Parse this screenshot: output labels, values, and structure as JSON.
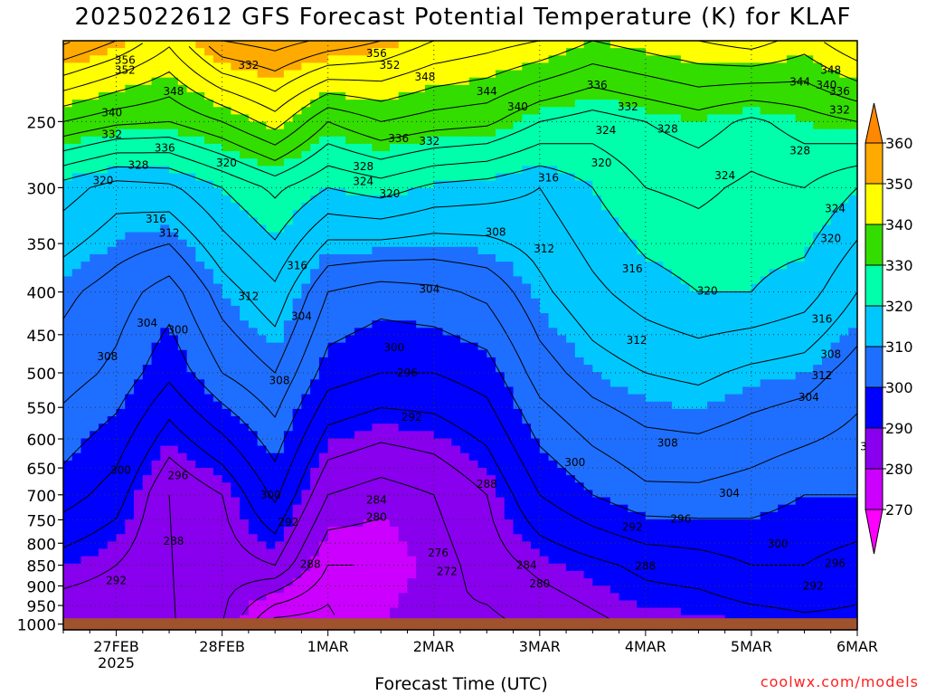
{
  "title": "2025022612 GFS Forecast Potential Temperature (K) for KLAF",
  "credit": "coolwx.com/models",
  "chart_data": {
    "type": "heatmap",
    "title": "2025022612 GFS Forecast Potential Temperature (K) for KLAF",
    "xlabel": "Forecast Time (UTC)",
    "ylabel": "",
    "x_ticks": [
      "27FEB",
      "28FEB",
      "1MAR",
      "2MAR",
      "3MAR",
      "4MAR",
      "5MAR",
      "6MAR"
    ],
    "x_tick_sublabel": "2025",
    "x_range": [
      "2025-02-26T12:00",
      "2025-03-06T00:00"
    ],
    "y_ticks": [
      250,
      300,
      350,
      400,
      450,
      500,
      550,
      600,
      650,
      700,
      750,
      800,
      850,
      900,
      950,
      1000
    ],
    "y_range": [
      1016,
      200
    ],
    "y_scale": "log",
    "grid": true,
    "colorbar": {
      "levels": [
        270,
        280,
        290,
        300,
        310,
        320,
        330,
        340,
        350,
        360
      ],
      "colors": [
        "#ff00ff",
        "#cc00ff",
        "#8800ee",
        "#0000ff",
        "#1e6fff",
        "#00c8ff",
        "#00ffaa",
        "#33dd00",
        "#ffff00",
        "#ffaa00",
        "#ff8800"
      ]
    },
    "series": [
      {
        "name": "1000 hPa",
        "values": [
          [
            0,
            285
          ],
          [
            12,
            285
          ],
          [
            24,
            284
          ],
          [
            36,
            284
          ],
          [
            48,
            270
          ],
          [
            60,
            270
          ],
          [
            72,
            280
          ],
          [
            84,
            284
          ],
          [
            96,
            283
          ],
          [
            108,
            285
          ],
          [
            120,
            287
          ],
          [
            132,
            289
          ],
          [
            144,
            289
          ],
          [
            156,
            290
          ],
          [
            168,
            291
          ],
          [
            180,
            291
          ]
        ]
      },
      {
        "name": "850 hPa",
        "values": [
          [
            0,
            290
          ],
          [
            12,
            288
          ],
          [
            24,
            284
          ],
          [
            36,
            286
          ],
          [
            48,
            288
          ],
          [
            60,
            276
          ],
          [
            72,
            276
          ],
          [
            84,
            282
          ],
          [
            96,
            286
          ],
          [
            108,
            289
          ],
          [
            120,
            291
          ],
          [
            132,
            293
          ],
          [
            144,
            294
          ],
          [
            156,
            296
          ],
          [
            168,
            296
          ],
          [
            180,
            294
          ]
        ]
      },
      {
        "name": "700 hPa",
        "values": [
          [
            0,
            298
          ],
          [
            12,
            294
          ],
          [
            24,
            284
          ],
          [
            36,
            288
          ],
          [
            48,
            297
          ],
          [
            60,
            284
          ],
          [
            72,
            282
          ],
          [
            84,
            284
          ],
          [
            96,
            288
          ],
          [
            108,
            296
          ],
          [
            120,
            300
          ],
          [
            132,
            303
          ],
          [
            144,
            303
          ],
          [
            156,
            302
          ],
          [
            168,
            300
          ],
          [
            180,
            300
          ]
        ]
      },
      {
        "name": "500 hPa",
        "values": [
          [
            0,
            306
          ],
          [
            12,
            303
          ],
          [
            24,
            297
          ],
          [
            36,
            304
          ],
          [
            48,
            308
          ],
          [
            60,
            298
          ],
          [
            72,
            296
          ],
          [
            84,
            296
          ],
          [
            96,
            298
          ],
          [
            108,
            306
          ],
          [
            120,
            310
          ],
          [
            132,
            312
          ],
          [
            144,
            313
          ],
          [
            156,
            311
          ],
          [
            168,
            310
          ],
          [
            180,
            306
          ]
        ]
      },
      {
        "name": "400 hPa",
        "values": [
          [
            0,
            309
          ],
          [
            12,
            306
          ],
          [
            24,
            302
          ],
          [
            36,
            310
          ],
          [
            48,
            315
          ],
          [
            60,
            304
          ],
          [
            72,
            302
          ],
          [
            84,
            303
          ],
          [
            96,
            305
          ],
          [
            108,
            311
          ],
          [
            120,
            315
          ],
          [
            132,
            318
          ],
          [
            144,
            320
          ],
          [
            156,
            320
          ],
          [
            168,
            318
          ],
          [
            180,
            312
          ]
        ]
      },
      {
        "name": "300 hPa",
        "values": [
          [
            0,
            318
          ],
          [
            12,
            314
          ],
          [
            24,
            315
          ],
          [
            36,
            320
          ],
          [
            48,
            325
          ],
          [
            60,
            320
          ],
          [
            72,
            322
          ],
          [
            84,
            319
          ],
          [
            96,
            318
          ],
          [
            108,
            316
          ],
          [
            120,
            320
          ],
          [
            132,
            324
          ],
          [
            144,
            325
          ],
          [
            156,
            323
          ],
          [
            168,
            324
          ],
          [
            180,
            320
          ]
        ]
      },
      {
        "name": "250 hPa",
        "values": [
          [
            0,
            336
          ],
          [
            12,
            333
          ],
          [
            24,
            332
          ],
          [
            36,
            336
          ],
          [
            48,
            342
          ],
          [
            60,
            332
          ],
          [
            72,
            336
          ],
          [
            84,
            334
          ],
          [
            96,
            333
          ],
          [
            108,
            328
          ],
          [
            120,
            326
          ],
          [
            132,
            328
          ],
          [
            144,
            330
          ],
          [
            156,
            327
          ],
          [
            168,
            330
          ],
          [
            180,
            332
          ]
        ]
      },
      {
        "name": "200 hPa",
        "values": [
          [
            0,
            357
          ],
          [
            12,
            352
          ],
          [
            24,
            345
          ],
          [
            36,
            356
          ],
          [
            48,
            358
          ],
          [
            60,
            355
          ],
          [
            72,
            352
          ],
          [
            84,
            348
          ],
          [
            96,
            346
          ],
          [
            108,
            344
          ],
          [
            120,
            340
          ],
          [
            132,
            342
          ],
          [
            144,
            344
          ],
          [
            156,
            346
          ],
          [
            168,
            342
          ],
          [
            180,
            348
          ]
        ]
      }
    ],
    "contour_labels": [
      {
        "t": 2,
        "p": 211,
        "v": 356
      },
      {
        "t": 2,
        "p": 217,
        "v": 352
      },
      {
        "t": 13,
        "p": 230,
        "v": 348
      },
      {
        "t": -1,
        "p": 244,
        "v": 340
      },
      {
        "t": -1,
        "p": 259,
        "v": 332
      },
      {
        "t": 11,
        "p": 269,
        "v": 336
      },
      {
        "t": 5,
        "p": 282,
        "v": 328
      },
      {
        "t": -3,
        "p": 294,
        "v": 320
      },
      {
        "t": 30,
        "p": 214,
        "v": 332
      },
      {
        "t": 25,
        "p": 280,
        "v": 320
      },
      {
        "t": 9,
        "p": 327,
        "v": 316
      },
      {
        "t": 12,
        "p": 340,
        "v": 312
      },
      {
        "t": 41,
        "p": 372,
        "v": 316
      },
      {
        "t": 30,
        "p": 405,
        "v": 312
      },
      {
        "t": 7,
        "p": 436,
        "v": 304
      },
      {
        "t": 14,
        "p": 444,
        "v": 300
      },
      {
        "t": -2,
        "p": 478,
        "v": 308
      },
      {
        "t": 37,
        "p": 511,
        "v": 308
      },
      {
        "t": 42,
        "p": 428,
        "v": 304
      },
      {
        "t": 59,
        "p": 207,
        "v": 356
      },
      {
        "t": 62,
        "p": 214,
        "v": 352
      },
      {
        "t": 70,
        "p": 221,
        "v": 348
      },
      {
        "t": 84,
        "p": 230,
        "v": 344
      },
      {
        "t": 91,
        "p": 240,
        "v": 340
      },
      {
        "t": 64,
        "p": 262,
        "v": 336
      },
      {
        "t": 71,
        "p": 264,
        "v": 332
      },
      {
        "t": 56,
        "p": 283,
        "v": 328
      },
      {
        "t": 56,
        "p": 295,
        "v": 324
      },
      {
        "t": 62,
        "p": 305,
        "v": 320
      },
      {
        "t": 98,
        "p": 292,
        "v": 316
      },
      {
        "t": 97,
        "p": 355,
        "v": 312
      },
      {
        "t": 86,
        "p": 339,
        "v": 308
      },
      {
        "t": 71,
        "p": 397,
        "v": 304
      },
      {
        "t": 63,
        "p": 466,
        "v": 300
      },
      {
        "t": 66,
        "p": 500,
        "v": 296
      },
      {
        "t": 67,
        "p": 565,
        "v": 292
      },
      {
        "t": 1,
        "p": 654,
        "v": 300
      },
      {
        "t": 14,
        "p": 664,
        "v": 296
      },
      {
        "t": 35,
        "p": 700,
        "v": 300
      },
      {
        "t": 39,
        "p": 755,
        "v": 292
      },
      {
        "t": 44,
        "p": 848,
        "v": 288
      },
      {
        "t": 13,
        "p": 795,
        "v": 288
      },
      {
        "t": 0,
        "p": 887,
        "v": 292
      },
      {
        "t": 59,
        "p": 710,
        "v": 284
      },
      {
        "t": 59,
        "p": 745,
        "v": 280
      },
      {
        "t": 84,
        "p": 680,
        "v": 288
      },
      {
        "t": 73,
        "p": 822,
        "v": 276
      },
      {
        "t": 75,
        "p": 865,
        "v": 272
      },
      {
        "t": 104,
        "p": 640,
        "v": 300
      },
      {
        "t": 109,
        "p": 226,
        "v": 336
      },
      {
        "t": 116,
        "p": 240,
        "v": 332
      },
      {
        "t": 111,
        "p": 256,
        "v": 324
      },
      {
        "t": 125,
        "p": 255,
        "v": 328
      },
      {
        "t": 110,
        "p": 280,
        "v": 320
      },
      {
        "t": 138,
        "p": 290,
        "v": 324
      },
      {
        "t": 155,
        "p": 271,
        "v": 328
      },
      {
        "t": 162,
        "p": 217,
        "v": 348
      },
      {
        "t": 155,
        "p": 224,
        "v": 344
      },
      {
        "t": 161,
        "p": 226,
        "v": 340
      },
      {
        "t": 164,
        "p": 230,
        "v": 336
      },
      {
        "t": 164,
        "p": 242,
        "v": 332
      },
      {
        "t": 163,
        "p": 318,
        "v": 324
      },
      {
        "t": 162,
        "p": 345,
        "v": 320
      },
      {
        "t": 117,
        "p": 375,
        "v": 316
      },
      {
        "t": 134,
        "p": 399,
        "v": 320
      },
      {
        "t": 160,
        "p": 431,
        "v": 316
      },
      {
        "t": 118,
        "p": 457,
        "v": 312
      },
      {
        "t": 162,
        "p": 475,
        "v": 308
      },
      {
        "t": 160,
        "p": 504,
        "v": 312
      },
      {
        "t": 157,
        "p": 535,
        "v": 304
      },
      {
        "t": 125,
        "p": 607,
        "v": 308
      },
      {
        "t": 171,
        "p": 613,
        "v": 300
      },
      {
        "t": 139,
        "p": 697,
        "v": 304
      },
      {
        "t": 128,
        "p": 748,
        "v": 296
      },
      {
        "t": 150,
        "p": 801,
        "v": 300
      },
      {
        "t": 117,
        "p": 765,
        "v": 292
      },
      {
        "t": 163,
        "p": 846,
        "v": 296
      },
      {
        "t": 120,
        "p": 852,
        "v": 288
      },
      {
        "t": 93,
        "p": 850,
        "v": 284
      },
      {
        "t": 96,
        "p": 895,
        "v": 280
      },
      {
        "t": 158,
        "p": 900,
        "v": 292
      }
    ]
  }
}
